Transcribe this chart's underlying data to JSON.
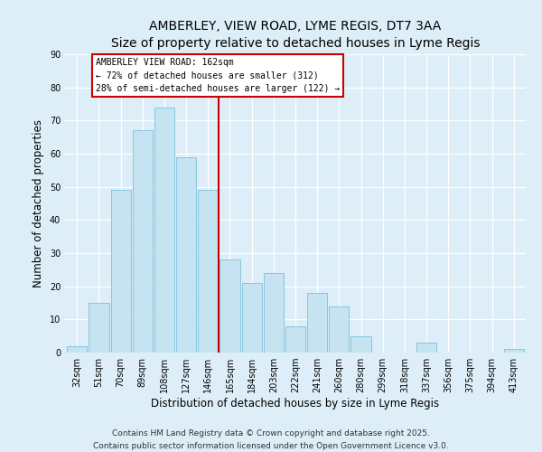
{
  "title": "AMBERLEY, VIEW ROAD, LYME REGIS, DT7 3AA",
  "subtitle": "Size of property relative to detached houses in Lyme Regis",
  "xlabel": "Distribution of detached houses by size in Lyme Regis",
  "ylabel": "Number of detached properties",
  "bar_labels": [
    "32sqm",
    "51sqm",
    "70sqm",
    "89sqm",
    "108sqm",
    "127sqm",
    "146sqm",
    "165sqm",
    "184sqm",
    "203sqm",
    "222sqm",
    "241sqm",
    "260sqm",
    "280sqm",
    "299sqm",
    "318sqm",
    "337sqm",
    "356sqm",
    "375sqm",
    "394sqm",
    "413sqm"
  ],
  "bar_values": [
    2,
    15,
    49,
    67,
    74,
    59,
    49,
    28,
    21,
    24,
    8,
    18,
    14,
    5,
    0,
    0,
    3,
    0,
    0,
    0,
    1
  ],
  "bar_color": "#c5e3f0",
  "bar_edge_color": "#89c4df",
  "vline_color": "#cc0000",
  "annotation_text": "AMBERLEY VIEW ROAD: 162sqm\n← 72% of detached houses are smaller (312)\n28% of semi-detached houses are larger (122) →",
  "annotation_box_color": "#ffffff",
  "annotation_box_edge": "#cc0000",
  "ylim": [
    0,
    90
  ],
  "background_color": "#ddeef8",
  "footer1": "Contains HM Land Registry data © Crown copyright and database right 2025.",
  "footer2": "Contains public sector information licensed under the Open Government Licence v3.0.",
  "title_fontsize": 10,
  "subtitle_fontsize": 9,
  "axis_label_fontsize": 8.5,
  "tick_fontsize": 7,
  "footer_fontsize": 6.5
}
